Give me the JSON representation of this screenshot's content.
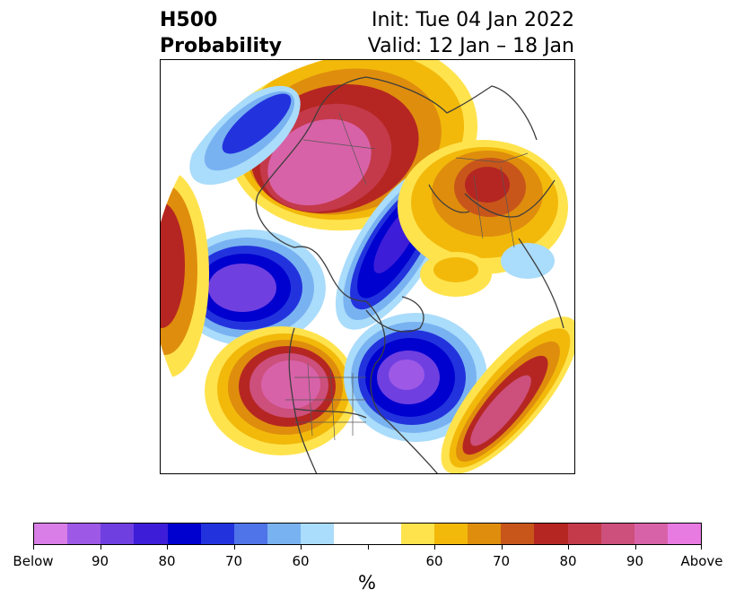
{
  "title": {
    "left_line1": "H500",
    "left_line2": "Probability",
    "right_line1": "Init: Tue 04 Jan 2022",
    "right_line2": "Valid: 12 Jan – 18 Jan"
  },
  "colorbar": {
    "colors": [
      "#d97ee6",
      "#9d59e6",
      "#6f3fe0",
      "#3d1dd8",
      "#0000cf",
      "#2233dd",
      "#4f73e8",
      "#79b2f1",
      "#aadcfb",
      "#ffffff",
      "#ffffff",
      "#ffe34d",
      "#f2b90b",
      "#df8d0d",
      "#c8561a",
      "#b52622",
      "#c43a4b",
      "#cc4f7c",
      "#d862a8",
      "#e87be2"
    ],
    "tick_labels": [
      "Below",
      "90",
      "80",
      "70",
      "60",
      "",
      "60",
      "70",
      "80",
      "90",
      "Above"
    ],
    "unit": "%"
  },
  "colors": {
    "below_strong": "#6f3fe0",
    "below": "#0000cf",
    "below_weak": "#aadcfb",
    "above_weak": "#ffe34d",
    "above": "#b52622",
    "above_strong": "#d862a8",
    "coast": "#3d3d3d"
  }
}
